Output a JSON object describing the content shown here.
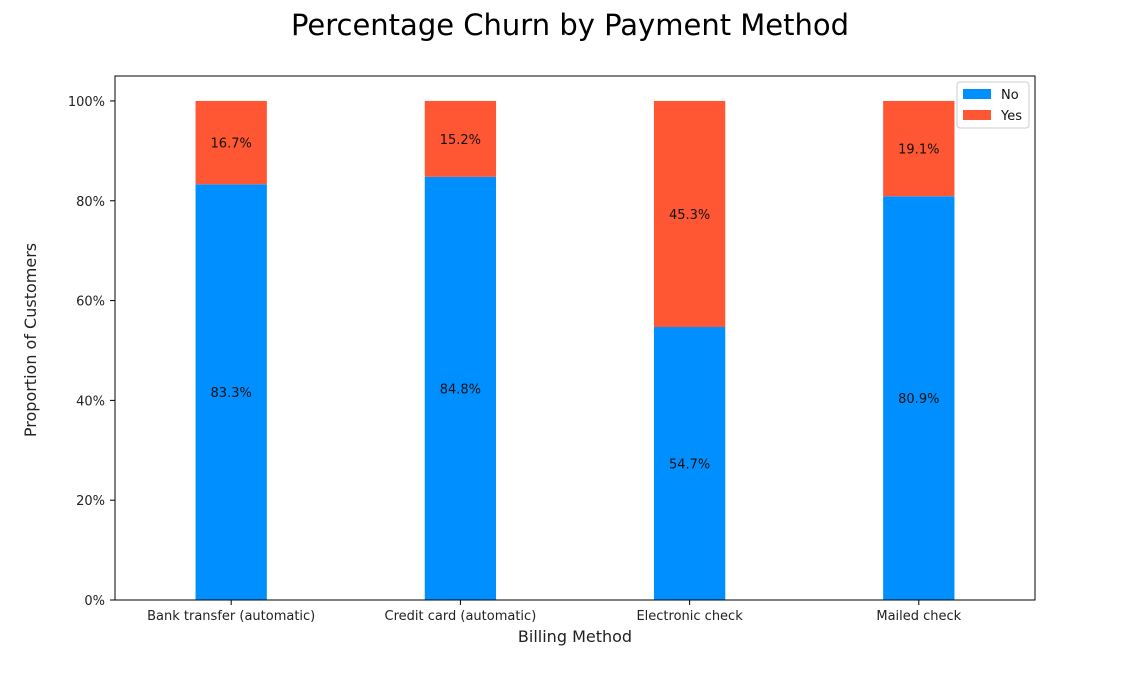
{
  "chart_data": {
    "type": "bar",
    "stacked": true,
    "title": "Percentage Churn by Payment Method",
    "xlabel": "Billing Method",
    "ylabel": "Proportion of Customers",
    "categories": [
      "Bank transfer (automatic)",
      "Credit card (automatic)",
      "Electronic check",
      "Mailed check"
    ],
    "series": [
      {
        "name": "No",
        "color": "#008FFF",
        "values": [
          83.3,
          84.8,
          54.7,
          80.9
        ],
        "labels": [
          "83.3%",
          "84.8%",
          "54.7%",
          "80.9%"
        ]
      },
      {
        "name": "Yes",
        "color": "#FF5733",
        "values": [
          16.7,
          15.2,
          45.3,
          19.1
        ],
        "labels": [
          "16.7%",
          "15.2%",
          "45.3%",
          "19.1%"
        ]
      }
    ],
    "ylim": [
      0,
      105
    ],
    "yticks": [
      0,
      20,
      40,
      60,
      80,
      100
    ],
    "ytick_labels": [
      "0%",
      "20%",
      "40%",
      "60%",
      "80%",
      "100%"
    ],
    "legend_position": "top-right",
    "grid": false
  }
}
